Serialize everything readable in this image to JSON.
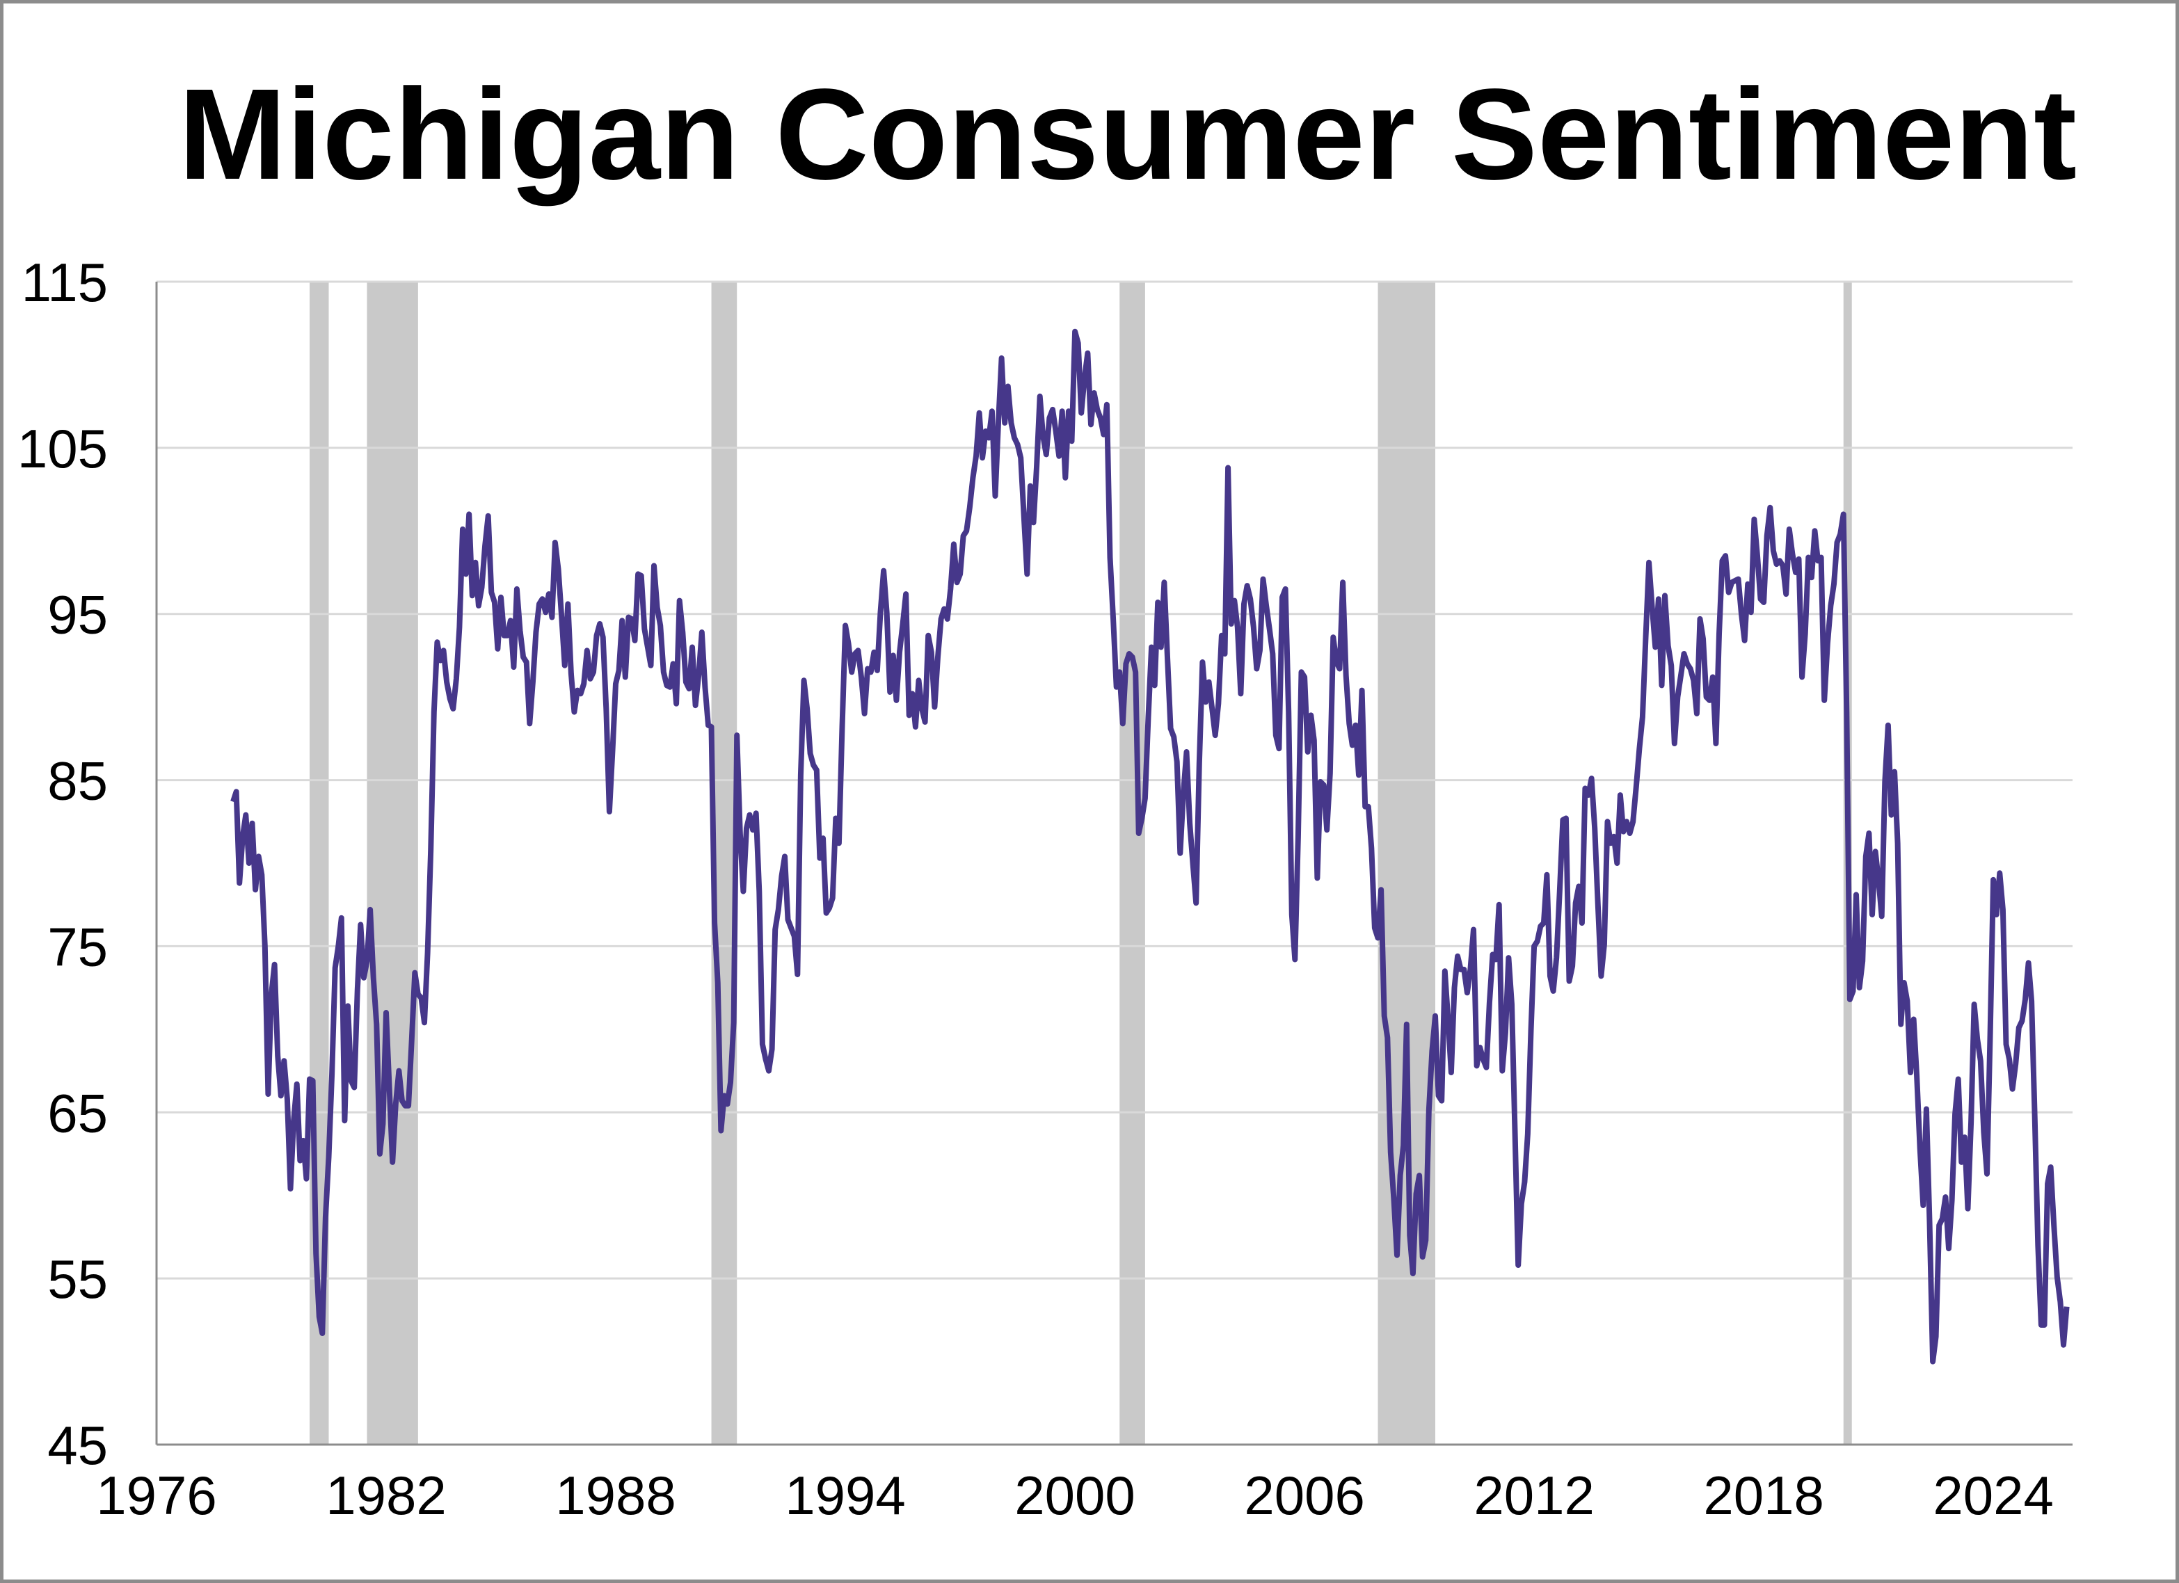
{
  "chart_data": {
    "type": "line",
    "title": "Michigan Consumer Sentiment",
    "xlabel": "",
    "ylabel": "",
    "ylim": [
      45,
      115
    ],
    "yticks": [
      "115",
      "105",
      "95",
      "85",
      "75",
      "65",
      "55",
      "45"
    ],
    "xlim": [
      1976,
      2026
    ],
    "xticks": [
      "1976",
      "1982",
      "1988",
      "1994",
      "2000",
      "2006",
      "2012",
      "2018",
      "2024"
    ],
    "grid": "horizontal",
    "legend": "none",
    "colors": {
      "line": "#46378a",
      "recession": "#c9c9c9",
      "grid": "#d9d9d9",
      "axis": "#8c8c8c"
    },
    "recessions": [
      [
        "1980-01",
        "1980-07"
      ],
      [
        "1981-07",
        "1982-11"
      ],
      [
        "1990-07",
        "1991-03"
      ],
      [
        "2001-03",
        "2001-11"
      ],
      [
        "2007-12",
        "2009-06"
      ],
      [
        "2020-02",
        "2020-04"
      ]
    ],
    "series": [
      {
        "frequency": "monthly",
        "years": [
          {
            "year": 1978,
            "values": [
              83.7,
              84.3,
              78.8,
              81.6,
              82.9,
              80.0,
              82.4,
              78.4,
              80.4,
              79.3,
              75.0,
              66.1
            ]
          },
          {
            "year": 1979,
            "values": [
              72.1,
              73.9,
              68.4,
              66.0,
              68.1,
              65.8,
              60.4,
              64.5,
              66.7,
              62.1,
              63.3,
              61.0
            ]
          },
          {
            "year": 1980,
            "values": [
              67.0,
              66.9,
              56.5,
              52.7,
              51.7,
              58.7,
              62.3,
              67.3,
              73.7,
              75.0,
              76.7,
              64.5
            ]
          },
          {
            "year": 1981,
            "values": [
              71.4,
              66.9,
              66.5,
              72.4,
              76.3,
              73.1,
              74.1,
              77.2,
              73.1,
              70.3,
              62.5,
              64.3
            ]
          },
          {
            "year": 1982,
            "values": [
              71.0,
              66.5,
              62.0,
              65.5,
              67.5,
              65.7,
              65.4,
              65.4,
              69.3,
              73.4,
              72.1,
              71.9
            ]
          },
          {
            "year": 1983,
            "values": [
              70.4,
              74.6,
              80.8,
              89.1,
              93.3,
              92.2,
              92.8,
              90.9,
              89.9,
              89.3,
              91.1,
              94.2
            ]
          },
          {
            "year": 1984,
            "values": [
              100.1,
              97.4,
              101.0,
              96.1,
              98.1,
              95.5,
              96.6,
              99.1,
              100.9,
              96.3,
              95.7,
              92.9
            ]
          },
          {
            "year": 1985,
            "values": [
              96.0,
              93.7,
              93.7,
              94.6,
              91.8,
              96.5,
              94.0,
              92.4,
              92.1,
              88.4,
              90.9,
              93.9
            ]
          },
          {
            "year": 1986,
            "values": [
              95.6,
              95.9,
              95.1,
              96.2,
              94.8,
              99.3,
              97.7,
              94.9,
              91.9,
              95.6,
              91.4,
              89.1
            ]
          },
          {
            "year": 1987,
            "values": [
              90.4,
              90.2,
              90.8,
              92.8,
              91.1,
              91.5,
              93.7,
              94.4,
              93.6,
              89.3,
              83.1,
              86.8
            ]
          },
          {
            "year": 1988,
            "values": [
              90.8,
              91.6,
              94.6,
              91.2,
              94.8,
              94.7,
              93.4,
              97.4,
              97.3,
              94.1,
              93.0,
              91.9
            ]
          },
          {
            "year": 1989,
            "values": [
              97.9,
              95.4,
              94.3,
              91.5,
              90.7,
              90.6,
              92.0,
              89.6,
              95.8,
              93.9,
              90.9,
              90.5
            ]
          },
          {
            "year": 1990,
            "values": [
              93.0,
              89.5,
              91.3,
              93.9,
              90.6,
              88.3,
              88.2,
              76.4,
              72.8,
              63.9,
              66.0,
              65.5
            ]
          },
          {
            "year": 1991,
            "values": [
              66.8,
              70.4,
              87.7,
              81.8,
              78.3,
              82.1,
              82.9,
              82.0,
              83.0,
              78.3,
              69.1,
              68.2
            ]
          },
          {
            "year": 1992,
            "values": [
              67.5,
              68.8,
              76.0,
              77.2,
              79.2,
              80.4,
              76.6,
              76.1,
              75.6,
              73.3,
              85.3,
              91.0
            ]
          },
          {
            "year": 1993,
            "values": [
              89.3,
              86.6,
              85.9,
              85.6,
              80.3,
              81.5,
              77.0,
              77.3,
              77.9,
              82.7,
              81.2,
              88.2
            ]
          },
          {
            "year": 1994,
            "values": [
              94.3,
              93.2,
              91.5,
              92.6,
              92.8,
              91.2,
              89.0,
              91.7,
              91.5,
              92.7,
              91.6,
              95.1
            ]
          },
          {
            "year": 1995,
            "values": [
              97.6,
              95.1,
              90.3,
              92.5,
              89.8,
              92.7,
              94.4,
              96.2,
              88.9,
              90.2,
              88.2,
              91.0
            ]
          },
          {
            "year": 1996,
            "values": [
              89.3,
              88.5,
              93.7,
              92.7,
              89.4,
              92.4,
              94.7,
              95.3,
              94.7,
              96.5,
              99.2,
              96.9
            ]
          },
          {
            "year": 1997,
            "values": [
              97.4,
              99.7,
              100.0,
              101.4,
              103.2,
              104.5,
              107.1,
              104.4,
              106.0,
              105.6,
              107.2,
              102.1
            ]
          },
          {
            "year": 1998,
            "values": [
              106.6,
              110.4,
              106.5,
              108.7,
              106.5,
              105.6,
              105.2,
              104.4,
              100.9,
              97.4,
              102.7,
              100.5
            ]
          },
          {
            "year": 1999,
            "values": [
              103.9,
              108.1,
              105.7,
              104.6,
              106.8,
              107.3,
              106.0,
              104.5,
              107.2,
              103.2,
              107.2,
              105.4
            ]
          },
          {
            "year": 2000,
            "values": [
              112.0,
              111.3,
              107.1,
              109.2,
              110.7,
              106.4,
              108.3,
              107.3,
              106.8,
              105.8,
              107.6,
              98.4
            ]
          },
          {
            "year": 2001,
            "values": [
              94.7,
              90.6,
              91.5,
              88.4,
              92.0,
              92.6,
              92.4,
              91.5,
              81.8,
              82.7,
              83.9,
              88.8
            ]
          },
          {
            "year": 2002,
            "values": [
              93.0,
              90.7,
              95.7,
              93.0,
              96.9,
              92.4,
              88.1,
              87.6,
              86.1,
              80.6,
              84.2,
              86.7
            ]
          },
          {
            "year": 2003,
            "values": [
              82.4,
              79.9,
              77.6,
              86.0,
              92.1,
              89.7,
              90.9,
              89.3,
              87.7,
              89.6,
              93.7,
              92.6
            ]
          },
          {
            "year": 2004,
            "values": [
              103.8,
              94.4,
              95.8,
              94.2,
              90.2,
              95.6,
              96.7,
              95.9,
              94.2,
              91.7,
              92.8,
              97.1
            ]
          },
          {
            "year": 2005,
            "values": [
              95.5,
              94.1,
              92.6,
              87.7,
              86.9,
              96.0,
              96.5,
              89.1,
              76.9,
              74.2,
              81.6,
              91.5
            ]
          },
          {
            "year": 2006,
            "values": [
              91.2,
              86.7,
              88.9,
              87.4,
              79.1,
              84.9,
              84.7,
              82.0,
              85.4,
              93.6,
              92.1,
              91.7
            ]
          },
          {
            "year": 2007,
            "values": [
              96.9,
              91.3,
              88.4,
              87.1,
              88.3,
              85.3,
              90.4,
              83.4,
              83.4,
              80.9,
              76.1,
              75.5
            ]
          },
          {
            "year": 2008,
            "values": [
              78.4,
              70.8,
              69.5,
              62.6,
              59.8,
              56.4,
              61.2,
              63.0,
              70.3,
              57.6,
              55.3,
              60.1
            ]
          },
          {
            "year": 2009,
            "values": [
              61.2,
              56.3,
              57.3,
              65.1,
              68.7,
              70.8,
              66.0,
              65.7,
              73.5,
              70.6,
              67.4,
              72.5
            ]
          },
          {
            "year": 2010,
            "values": [
              74.4,
              73.6,
              73.6,
              72.2,
              73.6,
              76.0,
              67.8,
              68.9,
              68.2,
              67.7,
              71.6,
              74.5
            ]
          },
          {
            "year": 2011,
            "values": [
              74.2,
              77.5,
              67.5,
              69.8,
              74.3,
              71.5,
              63.7,
              55.8,
              59.5,
              60.8,
              63.7,
              69.9
            ]
          },
          {
            "year": 2012,
            "values": [
              75.0,
              75.3,
              76.2,
              76.4,
              79.3,
              73.2,
              72.3,
              74.3,
              78.3,
              82.6,
              82.7,
              72.9
            ]
          },
          {
            "year": 2013,
            "values": [
              73.8,
              77.6,
              78.6,
              76.4,
              84.5,
              84.1,
              85.1,
              82.1,
              77.5,
              73.2,
              75.1,
              82.5
            ]
          },
          {
            "year": 2014,
            "values": [
              81.2,
              81.6,
              80.0,
              84.1,
              81.9,
              82.5,
              81.8,
              82.5,
              84.6,
              86.9,
              88.8,
              93.6
            ]
          },
          {
            "year": 2015,
            "values": [
              98.1,
              95.4,
              93.0,
              95.9,
              90.7,
              96.1,
              93.1,
              91.9,
              87.2,
              90.0,
              91.3,
              92.6
            ]
          },
          {
            "year": 2016,
            "values": [
              92.0,
              91.7,
              91.0,
              89.0,
              94.7,
              93.5,
              90.0,
              89.8,
              91.2,
              87.2,
              93.8,
              98.2
            ]
          },
          {
            "year": 2017,
            "values": [
              98.5,
              96.3,
              96.9,
              97.0,
              97.1,
              95.0,
              93.4,
              96.8,
              95.1,
              100.7,
              98.5,
              95.9
            ]
          },
          {
            "year": 2018,
            "values": [
              95.7,
              99.7,
              101.4,
              98.8,
              98.0,
              98.2,
              97.9,
              96.2,
              100.1,
              98.6,
              97.5,
              98.3
            ]
          },
          {
            "year": 2019,
            "values": [
              91.2,
              93.8,
              98.4,
              97.2,
              100.0,
              98.2,
              98.4,
              89.8,
              93.2,
              95.5,
              96.8,
              99.3
            ]
          },
          {
            "year": 2020,
            "values": [
              99.8,
              101.0,
              89.1,
              71.8,
              72.3,
              78.1,
              72.5,
              74.1,
              80.4,
              81.8,
              76.9,
              80.7
            ]
          },
          {
            "year": 2021,
            "values": [
              79.0,
              76.8,
              84.9,
              88.3,
              82.9,
              85.5,
              81.2,
              70.3,
              72.8,
              71.7,
              67.4,
              70.6
            ]
          },
          {
            "year": 2022,
            "values": [
              67.2,
              62.8,
              59.4,
              65.2,
              58.4,
              50.0,
              51.5,
              58.2,
              58.6,
              59.9,
              56.8,
              59.7
            ]
          },
          {
            "year": 2023,
            "values": [
              64.9,
              67.0,
              62.0,
              63.5,
              59.2,
              64.4,
              71.5,
              69.4,
              68.1,
              63.8,
              61.3,
              69.7
            ]
          },
          {
            "year": 2024,
            "values": [
              79.0,
              76.9,
              79.4,
              77.2,
              69.1,
              68.2,
              66.4,
              67.9,
              70.1,
              70.5,
              71.8,
              74.0
            ]
          },
          {
            "year": 2025,
            "values": [
              71.7,
              64.7,
              57.0,
              52.2,
              52.2,
              60.7,
              61.7,
              58.2,
              55.1,
              53.6,
              51.0,
              53.3
            ]
          }
        ]
      }
    ]
  }
}
